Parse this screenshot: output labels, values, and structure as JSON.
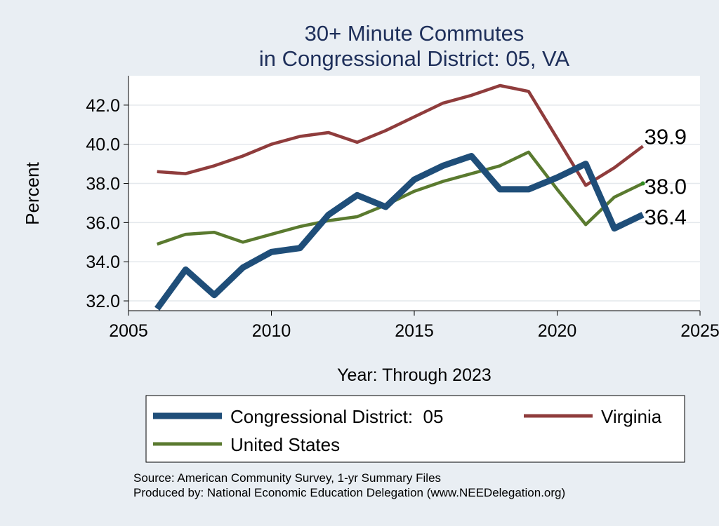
{
  "chart_data": {
    "type": "line",
    "title": "30+ Minute Commutes",
    "subtitle": "in Congressional District:  05, VA",
    "xlabel": "Year: Through 2023",
    "ylabel": "Percent",
    "xlim": [
      2005,
      2025
    ],
    "ylim": [
      31.5,
      43.5
    ],
    "xticks": [
      2005,
      2010,
      2015,
      2020,
      2025
    ],
    "yticks": [
      32.0,
      34.0,
      36.0,
      38.0,
      40.0,
      42.0
    ],
    "grid": true,
    "legend_position": "bottom",
    "series": [
      {
        "name": "Congressional District:  05",
        "color": "#1f4e79",
        "x": [
          2006,
          2007,
          2008,
          2009,
          2010,
          2011,
          2012,
          2013,
          2014,
          2015,
          2016,
          2017,
          2018,
          2019,
          2020,
          2021,
          2022,
          2023
        ],
        "values": [
          31.6,
          33.6,
          32.3,
          33.7,
          34.5,
          34.7,
          36.4,
          37.4,
          36.8,
          38.2,
          38.9,
          39.4,
          37.7,
          37.7,
          38.3,
          39.0,
          35.7,
          36.4
        ],
        "end_label": "36.4"
      },
      {
        "name": "Virginia",
        "color": "#8f3c3c",
        "x": [
          2006,
          2007,
          2008,
          2009,
          2010,
          2011,
          2012,
          2013,
          2014,
          2015,
          2016,
          2017,
          2018,
          2019,
          2020,
          2021,
          2022,
          2023
        ],
        "values": [
          38.6,
          38.5,
          38.9,
          39.4,
          40.0,
          40.4,
          40.6,
          40.1,
          40.7,
          41.4,
          42.1,
          42.5,
          43.0,
          42.7,
          40.3,
          37.9,
          38.8,
          39.9
        ],
        "end_label": "39.9"
      },
      {
        "name": "United States",
        "color": "#5a7a2f",
        "x": [
          2006,
          2007,
          2008,
          2009,
          2010,
          2011,
          2012,
          2013,
          2014,
          2015,
          2016,
          2017,
          2018,
          2019,
          2020,
          2021,
          2022,
          2023
        ],
        "values": [
          34.9,
          35.4,
          35.5,
          35.0,
          35.4,
          35.8,
          36.1,
          36.3,
          36.9,
          37.6,
          38.1,
          38.5,
          38.9,
          39.6,
          37.7,
          35.9,
          37.3,
          38.0
        ],
        "end_label": "38.0"
      }
    ],
    "source_note": "Source: American Community Survey, 1-yr Summary Files",
    "producer_note": "Produced by: National Economic Education Delegation (www.NEEDelegation.org)"
  }
}
